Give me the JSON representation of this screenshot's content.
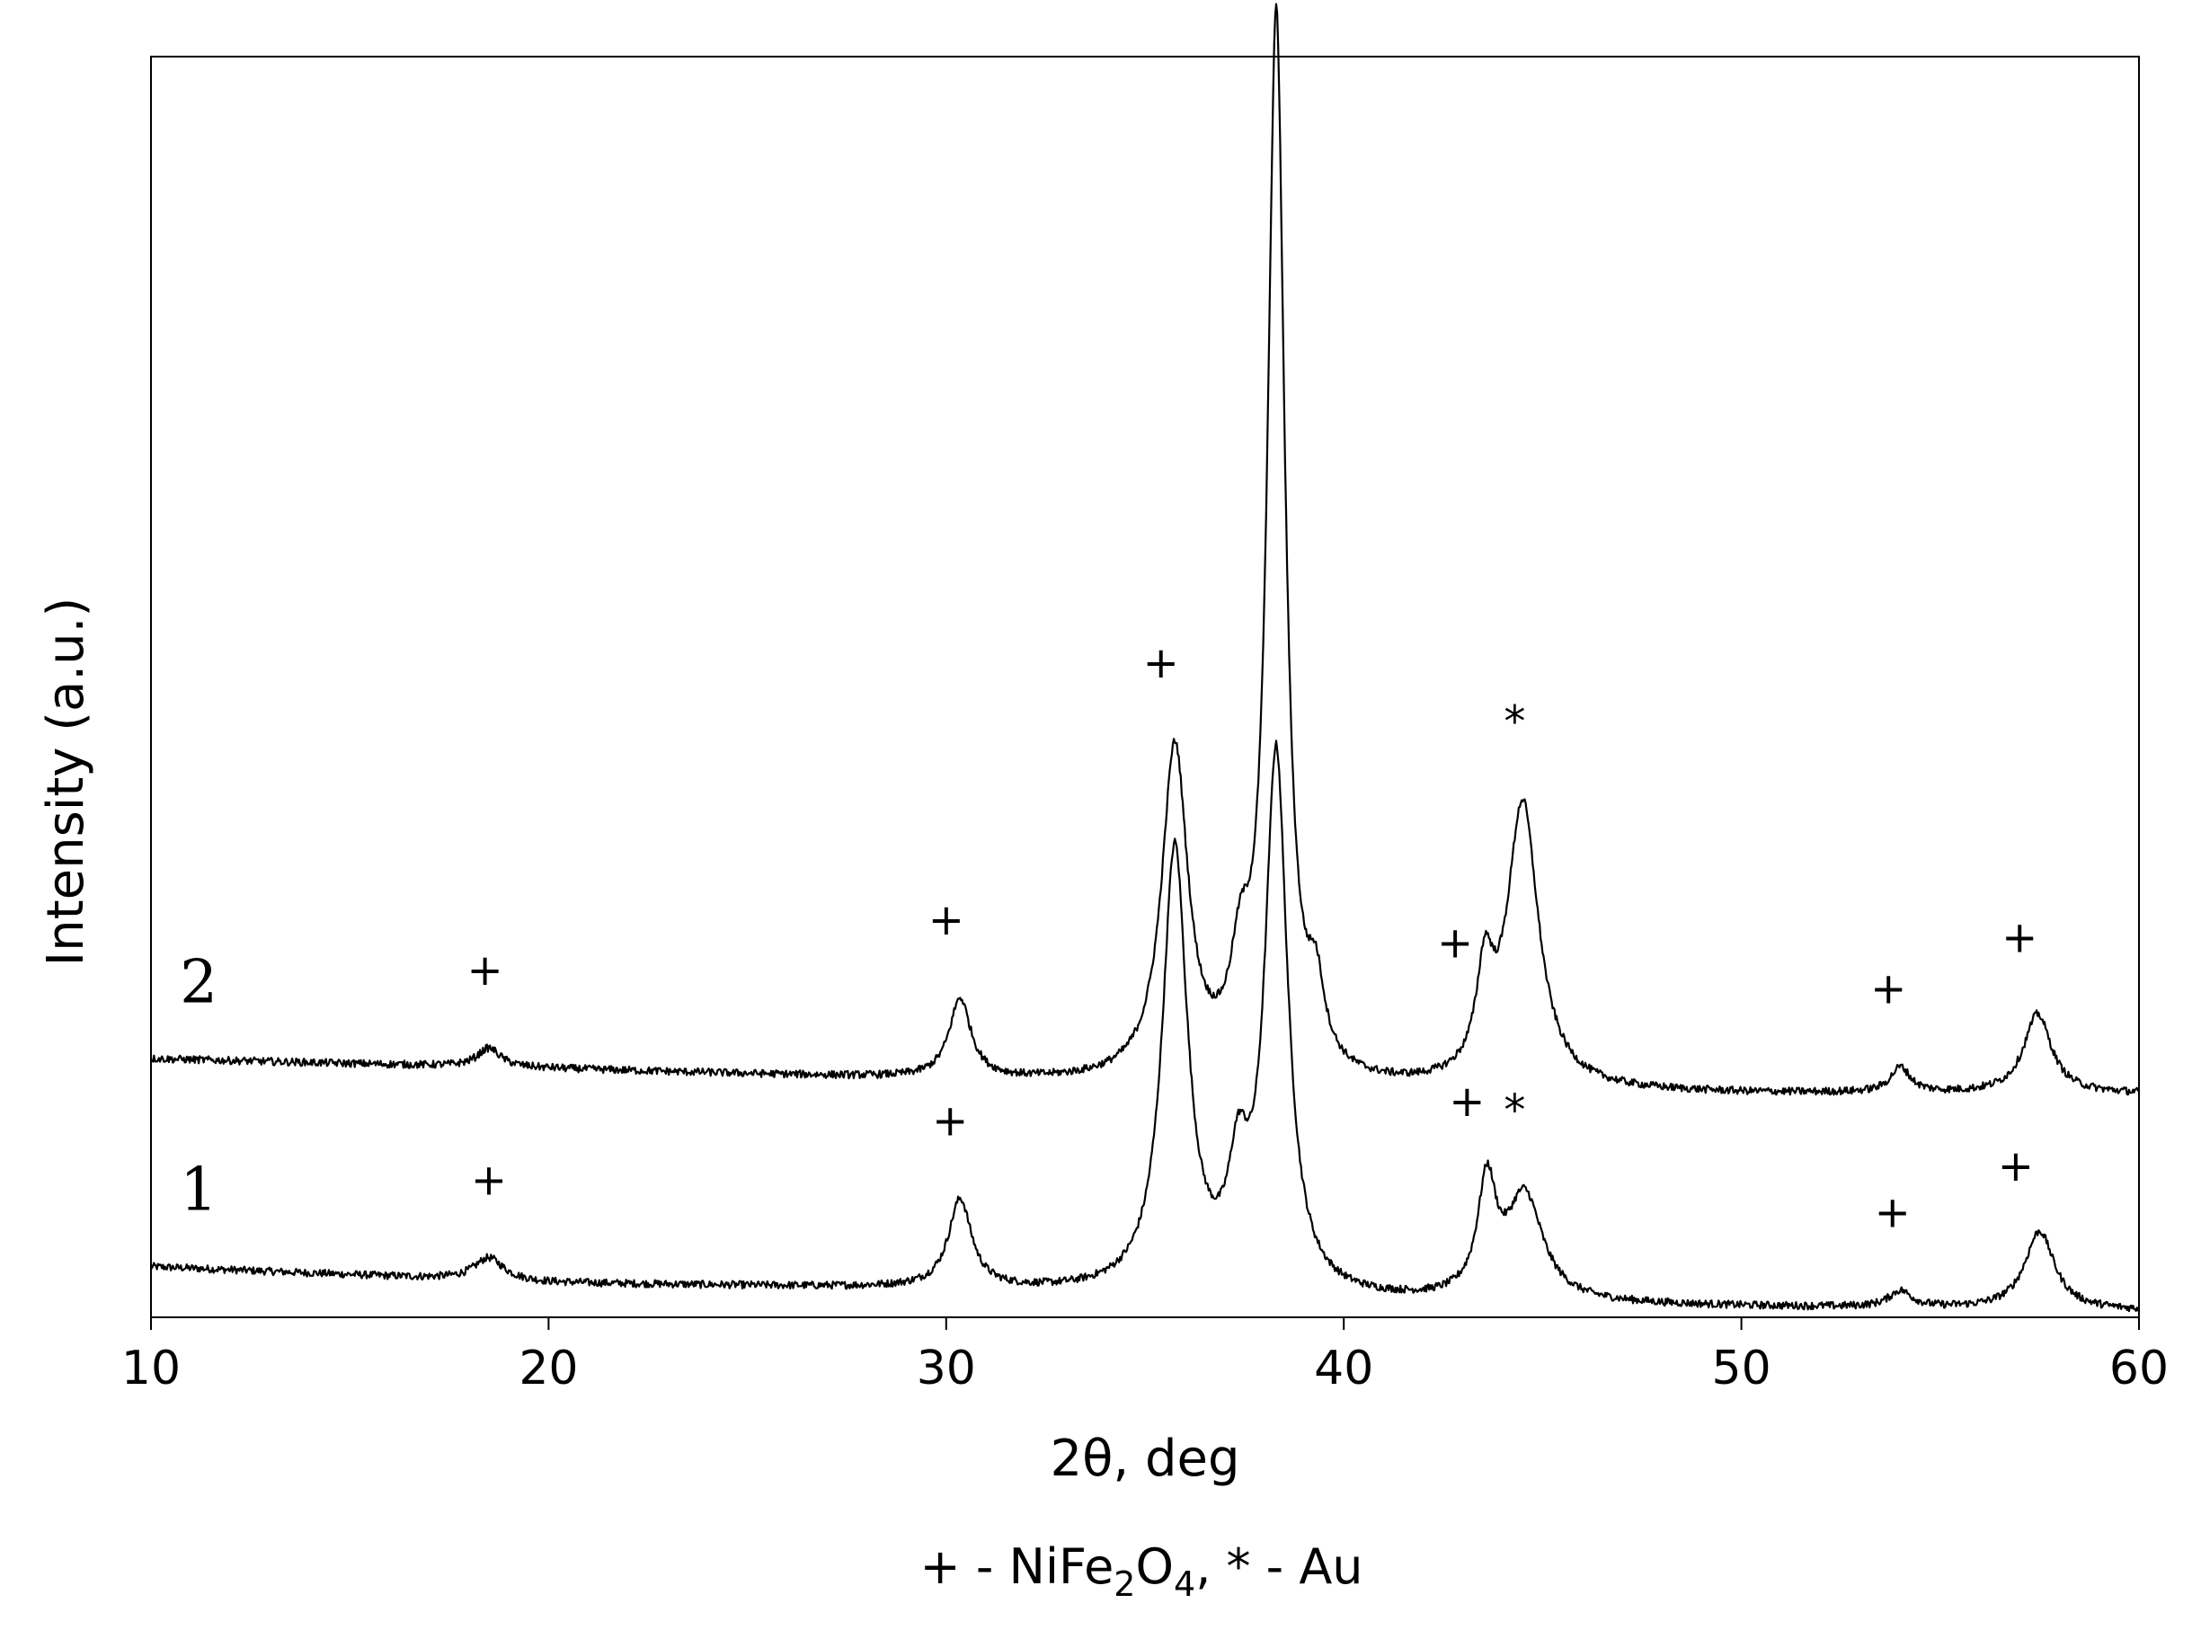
{
  "chart_data": {
    "type": "line",
    "xlabel": "2θ, deg",
    "ylabel": "Intensity (a.u.)",
    "xlim": [
      10,
      60
    ],
    "xticks": [
      "10",
      "20",
      "30",
      "40",
      "50",
      "60"
    ],
    "yticks_shown": false,
    "grid": false,
    "legend": "none",
    "line_color": "#000000",
    "series": [
      {
        "name": "1",
        "baseline": [
          [
            10,
            0.04
          ],
          [
            20,
            0.027
          ],
          [
            30,
            0.022
          ],
          [
            40,
            0.012
          ],
          [
            50,
            0.008
          ],
          [
            60,
            0.005
          ]
        ],
        "peaks": [
          {
            "x": 18.5,
            "h": 0.018,
            "w": 0.45
          },
          {
            "x": 30.35,
            "h": 0.07,
            "w": 0.35
          },
          {
            "x": 35.75,
            "h": 0.35,
            "w": 0.38
          },
          {
            "x": 37.35,
            "h": 0.08,
            "w": 0.3
          },
          {
            "x": 38.3,
            "h": 0.425,
            "w": 0.34
          },
          {
            "x": 43.6,
            "h": 0.088,
            "w": 0.28
          },
          {
            "x": 44.55,
            "h": 0.083,
            "w": 0.55
          },
          {
            "x": 54.0,
            "h": 0.013,
            "w": 0.35
          },
          {
            "x": 57.5,
            "h": 0.062,
            "w": 0.45
          }
        ]
      },
      {
        "name": "2",
        "baseline": [
          [
            10,
            0.205
          ],
          [
            20,
            0.197
          ],
          [
            30,
            0.188
          ],
          [
            40,
            0.18
          ],
          [
            50,
            0.177
          ],
          [
            60,
            0.177
          ]
        ],
        "peaks": [
          {
            "x": 18.5,
            "h": 0.015,
            "w": 0.35
          },
          {
            "x": 30.35,
            "h": 0.063,
            "w": 0.33
          },
          {
            "x": 35.75,
            "h": 0.262,
            "w": 0.4
          },
          {
            "x": 37.4,
            "h": 0.07,
            "w": 0.3
          },
          {
            "x": 38.3,
            "h": 0.84,
            "w": 0.26
          },
          {
            "x": 39.3,
            "h": 0.055,
            "w": 0.25
          },
          {
            "x": 43.55,
            "h": 0.076,
            "w": 0.25
          },
          {
            "x": 44.5,
            "h": 0.225,
            "w": 0.48
          },
          {
            "x": 54.0,
            "h": 0.02,
            "w": 0.3
          },
          {
            "x": 57.45,
            "h": 0.063,
            "w": 0.42
          }
        ]
      }
    ],
    "annotations": [
      {
        "text": "+",
        "x": 18.4,
        "series": "2"
      },
      {
        "text": "+",
        "x": 30.0,
        "series": "2"
      },
      {
        "text": "+",
        "x": 35.4,
        "series": "2"
      },
      {
        "text": "*",
        "x": 38.3,
        "series": "2"
      },
      {
        "text": "+",
        "x": 42.8,
        "series": "2"
      },
      {
        "text": "*",
        "x": 44.3,
        "series": "2"
      },
      {
        "text": "+",
        "x": 53.7,
        "series": "2"
      },
      {
        "text": "+",
        "x": 57.0,
        "series": "2"
      },
      {
        "text": "+",
        "x": 18.5,
        "series": "1"
      },
      {
        "text": "+",
        "x": 30.1,
        "series": "1"
      },
      {
        "text": "+",
        "x": 43.1,
        "series": "1"
      },
      {
        "text": "*",
        "x": 44.3,
        "series": "1"
      },
      {
        "text": "+",
        "x": 53.8,
        "series": "1"
      },
      {
        "text": "+",
        "x": 56.9,
        "series": "1"
      }
    ],
    "footnote": {
      "prefix": "+ - NiFe",
      "sub1": "2",
      "mid": "O",
      "sub2": "4",
      "suffix": ", * - Au"
    }
  }
}
